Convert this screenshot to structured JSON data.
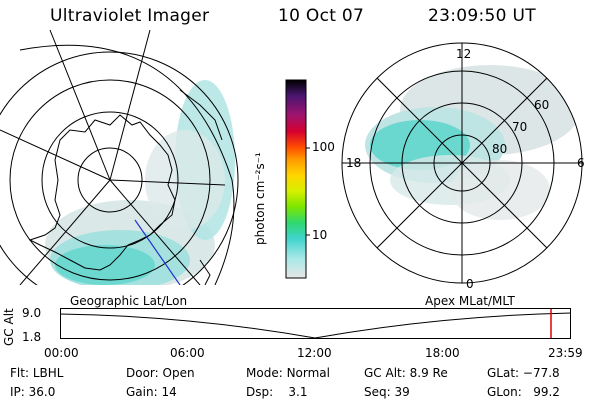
{
  "header": {
    "title": "Ultraviolet Imager",
    "date": "10 Oct 07",
    "time": "23:09:50 UT"
  },
  "left_panel": {
    "label": "Geographic Lat/Lon"
  },
  "colorbar": {
    "unit_label": "photon cm⁻²s⁻¹",
    "ticks": [
      "100",
      "10"
    ],
    "colors": [
      "#000000",
      "#5a1a7a",
      "#a0146e",
      "#d6002e",
      "#ff4d00",
      "#ff9a00",
      "#ffd400",
      "#d8f000",
      "#7ee600",
      "#2fd86e",
      "#3fd3cc",
      "#a8e8e8",
      "#e0e0e0"
    ]
  },
  "right_panel": {
    "label": "Apex MLat/MLT",
    "mlt_labels": {
      "top": "12",
      "left": "18",
      "right": "6",
      "bottom": "0"
    },
    "lat_labels": [
      "60",
      "70",
      "80"
    ]
  },
  "timeline": {
    "axis_label": "GC Alt",
    "y_ticks": [
      "9.0",
      "1.8"
    ],
    "x_ticks": [
      "00:00",
      "06:00",
      "12:00",
      "18:00",
      "23:59"
    ],
    "current_marker_color": "#dd0000"
  },
  "info": {
    "flt_label": "Flt:",
    "flt_value": "LBHL",
    "ip_label": "IP:",
    "ip_value": "36.0",
    "door_label": "Door:",
    "door_value": "Open",
    "gain_label": "Gain:",
    "gain_value": "14",
    "mode_label": "Mode:",
    "mode_value": "Normal",
    "dsp_label": "Dsp:",
    "dsp_value": "3.1",
    "gcalt_label": "GC Alt:",
    "gcalt_value": "8.9 Re",
    "seq_label": "Seq:",
    "seq_value": "39",
    "glat_label": "GLat:",
    "glat_value": "−77.8",
    "glon_label": "GLon:",
    "glon_value": "99.2"
  }
}
